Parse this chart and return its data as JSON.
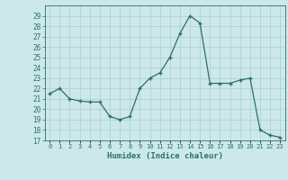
{
  "x": [
    0,
    1,
    2,
    3,
    4,
    5,
    6,
    7,
    8,
    9,
    10,
    11,
    12,
    13,
    14,
    15,
    16,
    17,
    18,
    19,
    20,
    21,
    22,
    23
  ],
  "y": [
    21.5,
    22.0,
    21.0,
    20.8,
    20.7,
    20.7,
    19.3,
    19.0,
    19.3,
    22.0,
    23.0,
    23.5,
    25.0,
    27.3,
    29.0,
    28.3,
    22.5,
    22.5,
    22.5,
    22.8,
    23.0,
    18.0,
    17.5,
    17.3
  ],
  "xlim": [
    -0.5,
    23.5
  ],
  "ylim": [
    17,
    30
  ],
  "yticks": [
    17,
    18,
    19,
    20,
    21,
    22,
    23,
    24,
    25,
    26,
    27,
    28,
    29
  ],
  "xtick_labels": [
    "0",
    "1",
    "2",
    "3",
    "4",
    "5",
    "6",
    "7",
    "8",
    "9",
    "10",
    "11",
    "12",
    "13",
    "14",
    "15",
    "16",
    "17",
    "18",
    "19",
    "20",
    "21",
    "22",
    "23"
  ],
  "xlabel": "Humidex (Indice chaleur)",
  "line_color": "#2d6e6e",
  "marker": "+",
  "bg_color": "#cce8e8",
  "grid_color": "#aacfcf",
  "tick_color": "#2d6e6e",
  "label_color": "#2d6e6e"
}
